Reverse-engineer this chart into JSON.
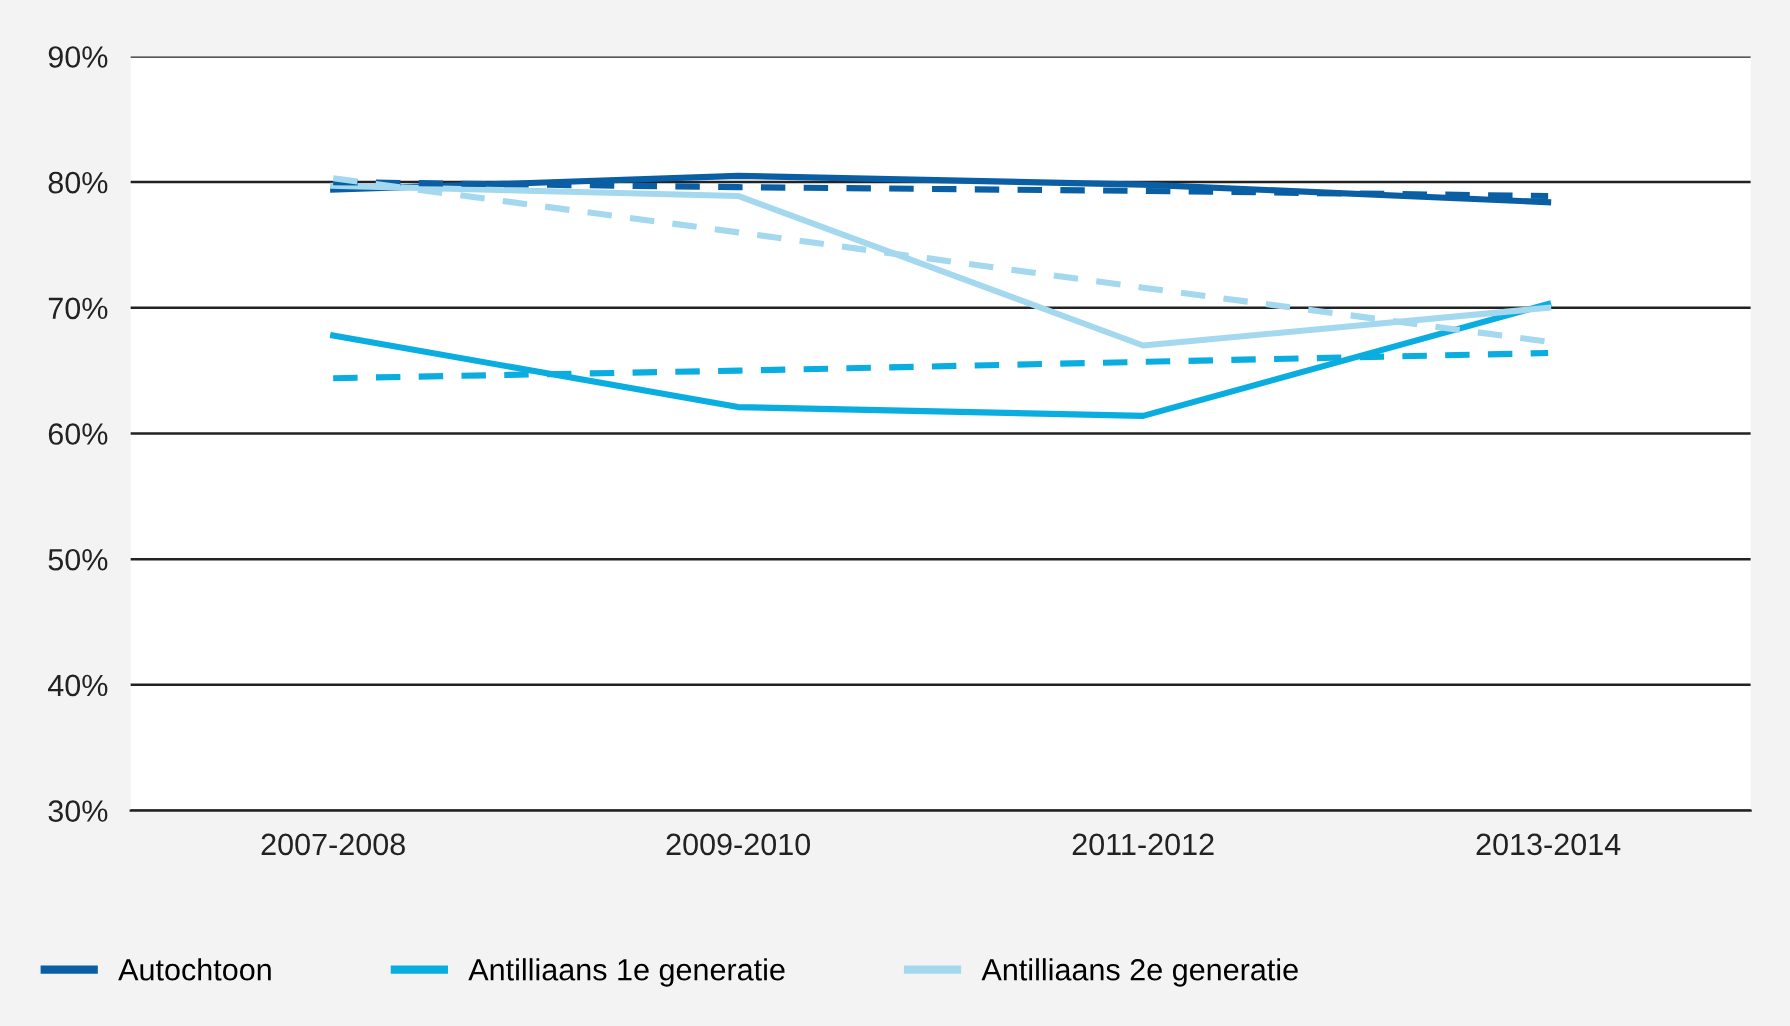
{
  "chart_data": {
    "type": "line",
    "categories": [
      "2007-2008",
      "2009-2010",
      "2011-2012",
      "2013-2014"
    ],
    "series": [
      {
        "name": "Autochtoon",
        "color": "#0a5fa4",
        "values": [
          79.4,
          80.5,
          79.8,
          78.4
        ]
      },
      {
        "name": "Antilliaans 1e generatie",
        "color": "#0aade0",
        "values": [
          67.8,
          62.1,
          61.4,
          70.3
        ]
      },
      {
        "name": "Antilliaans 2e generatie",
        "color": "#a3d8ef",
        "values": [
          79.7,
          78.9,
          67.0,
          70.0
        ]
      },
      {
        "type": "line",
        "color": "#0a5fa4",
        "line_style": "dashed",
        "values": [
          80.0,
          79.6,
          79.3,
          78.9
        ]
      },
      {
        "type": "line",
        "color": "#0aade0",
        "line_style": "dashed",
        "values": [
          64.4,
          65.0,
          65.7,
          66.4
        ]
      },
      {
        "type": "line",
        "color": "#a3d8ef",
        "line_style": "dashed",
        "values": [
          80.3,
          76.0,
          71.6,
          67.3
        ]
      }
    ],
    "ylim": [
      30,
      90
    ],
    "yticks": [
      {
        "value": 30,
        "label": "30%"
      },
      {
        "value": 40,
        "label": "40%"
      },
      {
        "value": 50,
        "label": "50%"
      },
      {
        "value": 60,
        "label": "60%"
      },
      {
        "value": 70,
        "label": "70%"
      },
      {
        "value": 80,
        "label": "80%"
      },
      {
        "value": 90,
        "label": "90%"
      }
    ],
    "grid": "y",
    "legend": "bottom left"
  }
}
